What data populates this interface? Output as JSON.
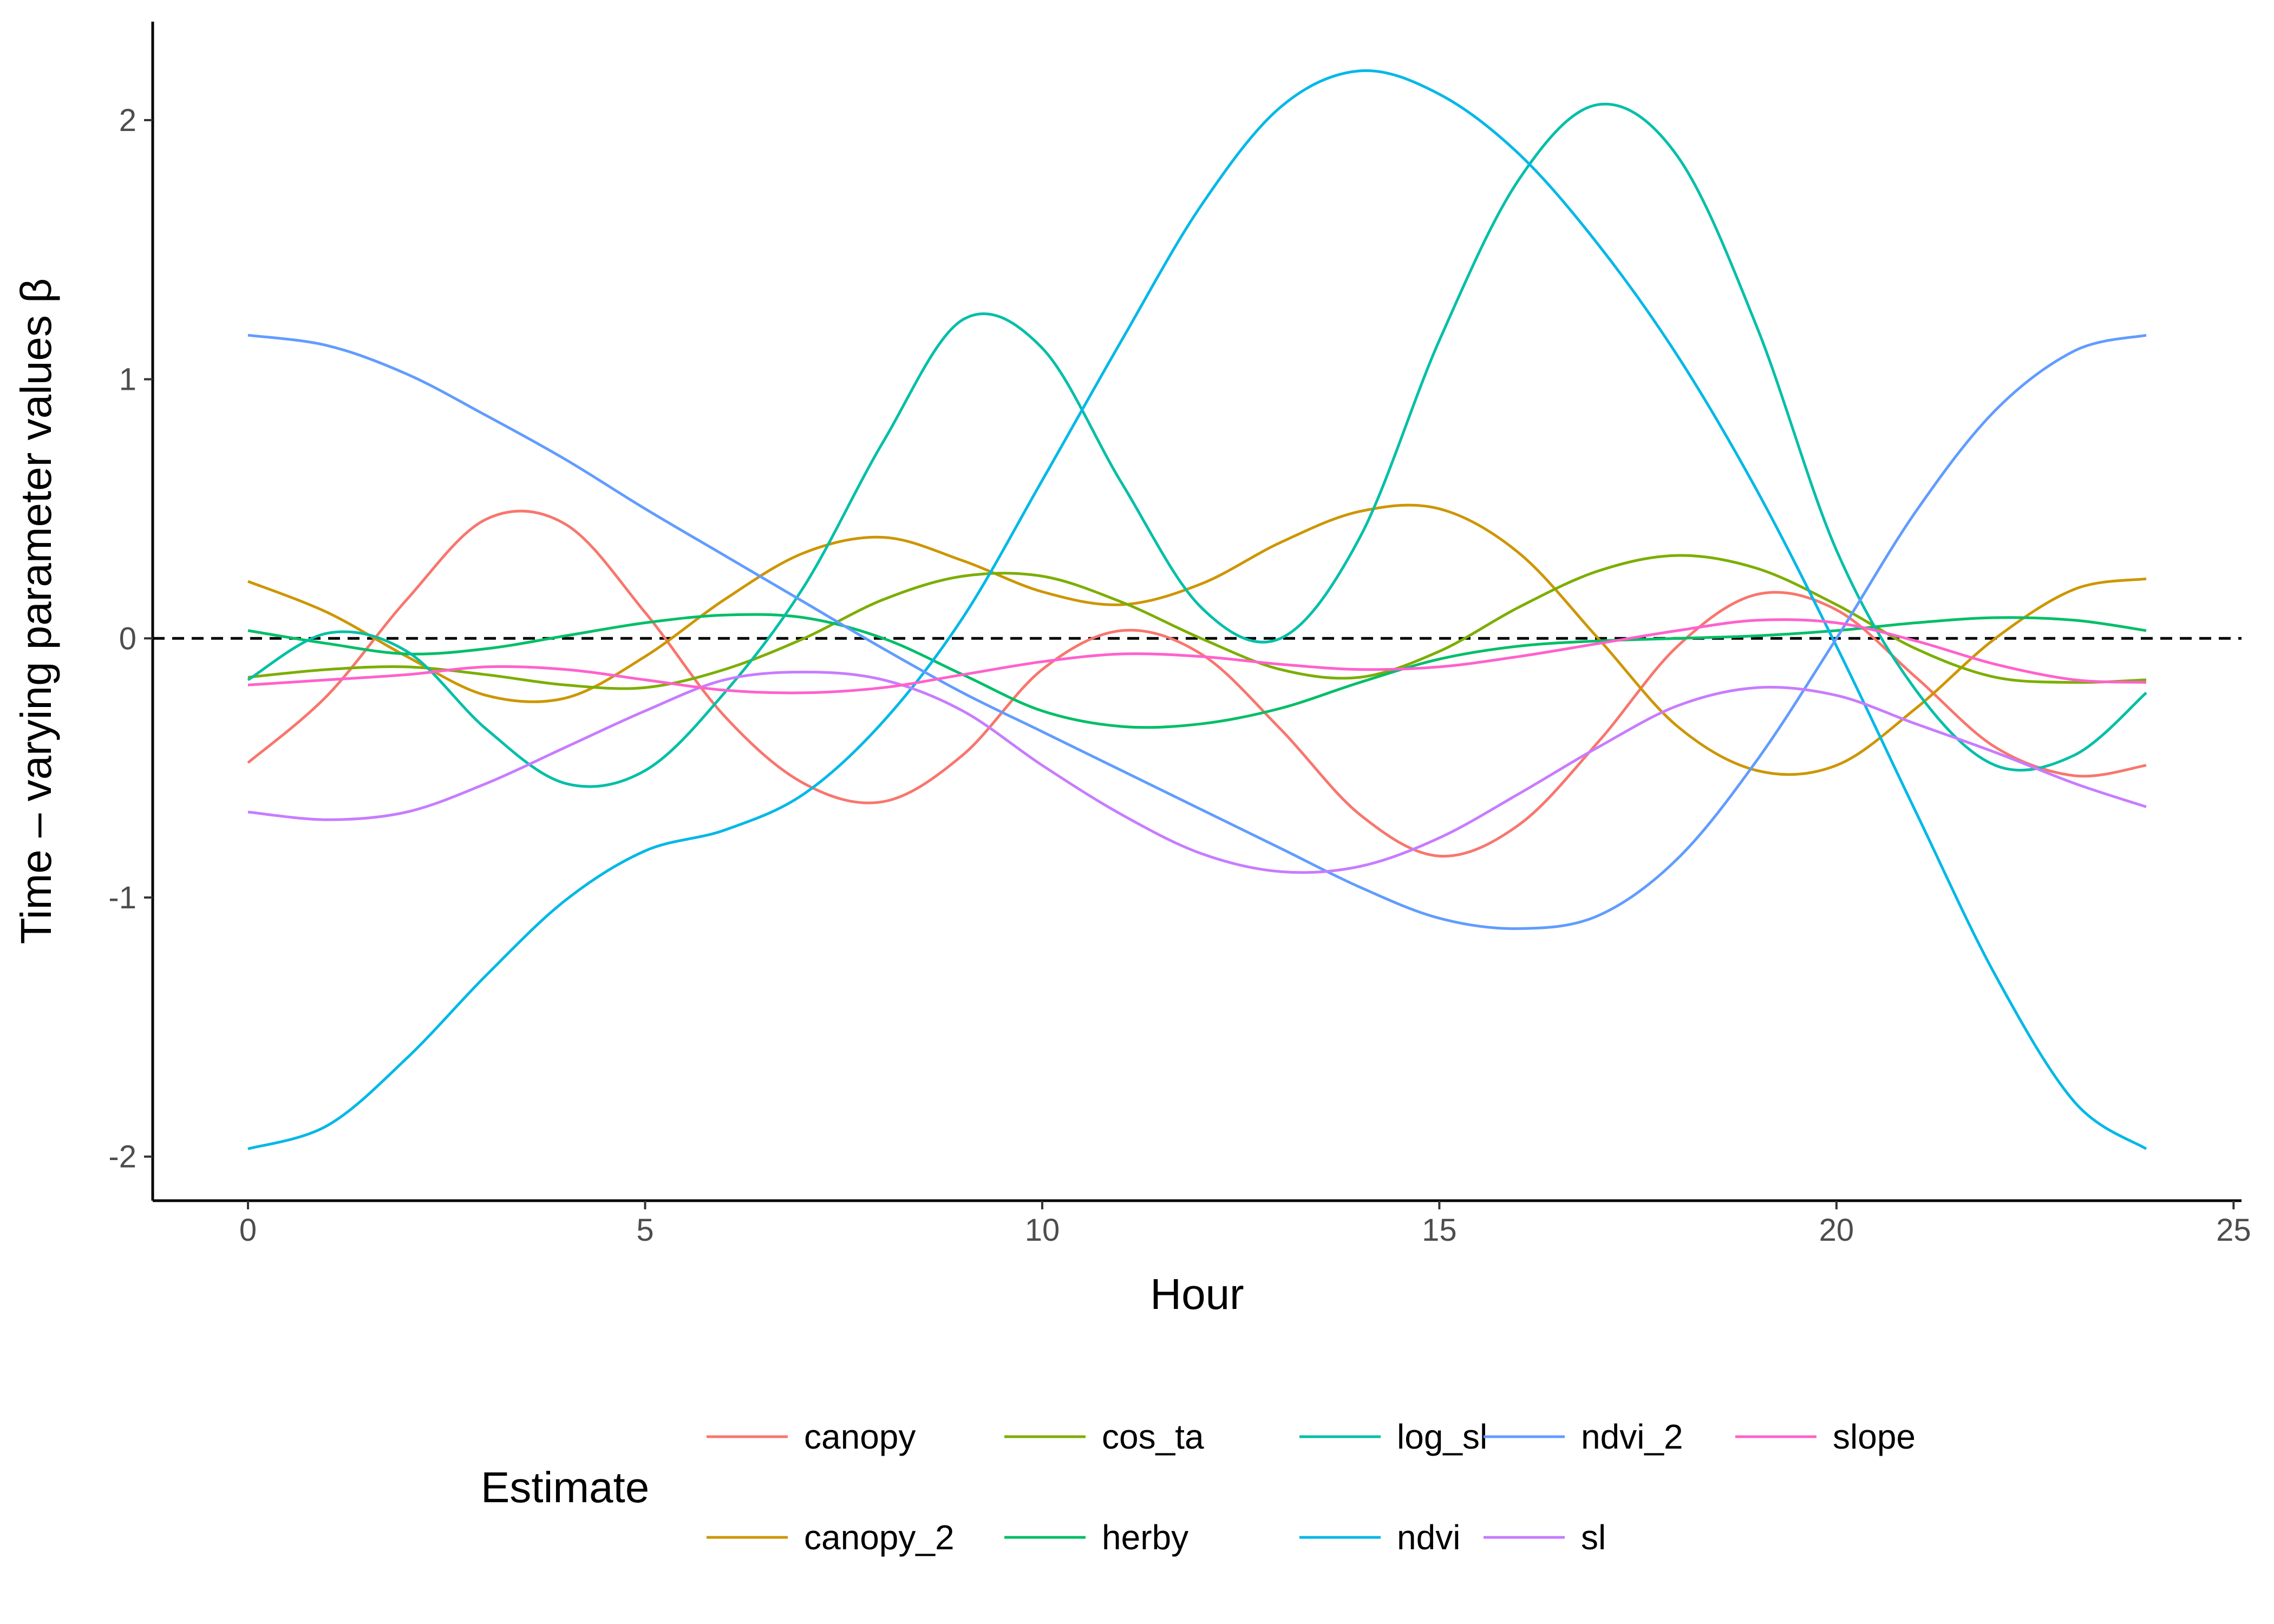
{
  "chart_data": {
    "type": "line",
    "title": "",
    "xlabel": "Hour",
    "ylabel": "Time – varying parameter values β",
    "xlim": [
      -1.2,
      25.1
    ],
    "ylim": [
      -2.17,
      2.38
    ],
    "xticks": [
      0,
      5,
      10,
      15,
      20,
      25
    ],
    "yticks": [
      -2,
      -1,
      0,
      1,
      2
    ],
    "xtick_labels": [
      "0",
      "5",
      "10",
      "15",
      "20",
      "25"
    ],
    "ytick_labels": [
      "-2",
      "-1",
      "0",
      "1",
      "2"
    ],
    "grid": false,
    "reference_line": {
      "y": 0,
      "style": "dashed"
    },
    "legend": {
      "title": "Estimate",
      "position": "bottom"
    },
    "x": [
      0,
      1,
      2,
      3,
      4,
      5,
      6,
      7,
      8,
      9,
      10,
      11,
      12,
      13,
      14,
      15,
      16,
      17,
      18,
      19,
      20,
      21,
      22,
      23,
      23.9
    ],
    "series": [
      {
        "name": "canopy",
        "color": "#F8766D",
        "values": [
          -0.48,
          -0.22,
          0.15,
          0.46,
          0.44,
          0.1,
          -0.3,
          -0.56,
          -0.63,
          -0.45,
          -0.12,
          0.03,
          -0.06,
          -0.35,
          -0.68,
          -0.84,
          -0.72,
          -0.4,
          -0.03,
          0.17,
          0.11,
          -0.15,
          -0.42,
          -0.53,
          -0.49
        ]
      },
      {
        "name": "canopy_2",
        "color": "#CD9600",
        "values": [
          0.22,
          0.1,
          -0.07,
          -0.22,
          -0.23,
          -0.07,
          0.15,
          0.33,
          0.39,
          0.3,
          0.18,
          0.13,
          0.21,
          0.37,
          0.49,
          0.5,
          0.33,
          0.0,
          -0.34,
          -0.51,
          -0.49,
          -0.27,
          0.0,
          0.19,
          0.23
        ]
      },
      {
        "name": "cos_ta",
        "color": "#7CAE00",
        "values": [
          -0.15,
          -0.12,
          -0.11,
          -0.14,
          -0.18,
          -0.19,
          -0.12,
          0.0,
          0.15,
          0.24,
          0.24,
          0.14,
          0.0,
          -0.12,
          -0.15,
          -0.05,
          0.12,
          0.26,
          0.32,
          0.27,
          0.13,
          -0.04,
          -0.15,
          -0.17,
          -0.16
        ]
      },
      {
        "name": "herby",
        "color": "#00BE67",
        "values": [
          0.03,
          -0.02,
          -0.06,
          -0.04,
          0.01,
          0.06,
          0.09,
          0.08,
          0.0,
          -0.14,
          -0.28,
          -0.34,
          -0.33,
          -0.27,
          -0.17,
          -0.08,
          -0.03,
          -0.01,
          0.0,
          0.01,
          0.03,
          0.06,
          0.08,
          0.07,
          0.03
        ]
      },
      {
        "name": "log_sl",
        "color": "#00BFA7",
        "values": [
          -0.16,
          0.02,
          -0.05,
          -0.35,
          -0.56,
          -0.51,
          -0.21,
          0.2,
          0.76,
          1.23,
          1.12,
          0.6,
          0.12,
          0.0,
          0.39,
          1.15,
          1.77,
          2.06,
          1.86,
          1.2,
          0.34,
          -0.2,
          -0.49,
          -0.45,
          -0.21
        ]
      },
      {
        "name": "ndvi",
        "color": "#00B8E7",
        "values": [
          -1.97,
          -1.88,
          -1.62,
          -1.3,
          -1.01,
          -0.82,
          -0.74,
          -0.6,
          -0.32,
          0.08,
          0.61,
          1.15,
          1.67,
          2.05,
          2.19,
          2.1,
          1.87,
          1.52,
          1.09,
          0.57,
          -0.03,
          -0.67,
          -1.3,
          -1.79,
          -1.97
        ]
      },
      {
        "name": "ndvi_2",
        "color": "#619CFF",
        "values": [
          1.17,
          1.13,
          1.02,
          0.86,
          0.69,
          0.5,
          0.32,
          0.14,
          -0.04,
          -0.21,
          -0.36,
          -0.51,
          -0.66,
          -0.81,
          -0.96,
          -1.08,
          -1.12,
          -1.07,
          -0.85,
          -0.47,
          0.0,
          0.49,
          0.88,
          1.11,
          1.17
        ]
      },
      {
        "name": "sl",
        "color": "#C77CFF",
        "values": [
          -0.67,
          -0.7,
          -0.67,
          -0.56,
          -0.42,
          -0.28,
          -0.16,
          -0.13,
          -0.16,
          -0.28,
          -0.49,
          -0.68,
          -0.83,
          -0.9,
          -0.88,
          -0.77,
          -0.6,
          -0.42,
          -0.26,
          -0.19,
          -0.22,
          -0.33,
          -0.44,
          -0.56,
          -0.65
        ]
      },
      {
        "name": "slope",
        "color": "#FF61CC",
        "values": [
          -0.18,
          -0.16,
          -0.14,
          -0.11,
          -0.12,
          -0.16,
          -0.2,
          -0.21,
          -0.19,
          -0.14,
          -0.09,
          -0.06,
          -0.07,
          -0.1,
          -0.12,
          -0.11,
          -0.07,
          -0.02,
          0.03,
          0.07,
          0.06,
          -0.01,
          -0.1,
          -0.16,
          -0.17
        ]
      }
    ]
  }
}
